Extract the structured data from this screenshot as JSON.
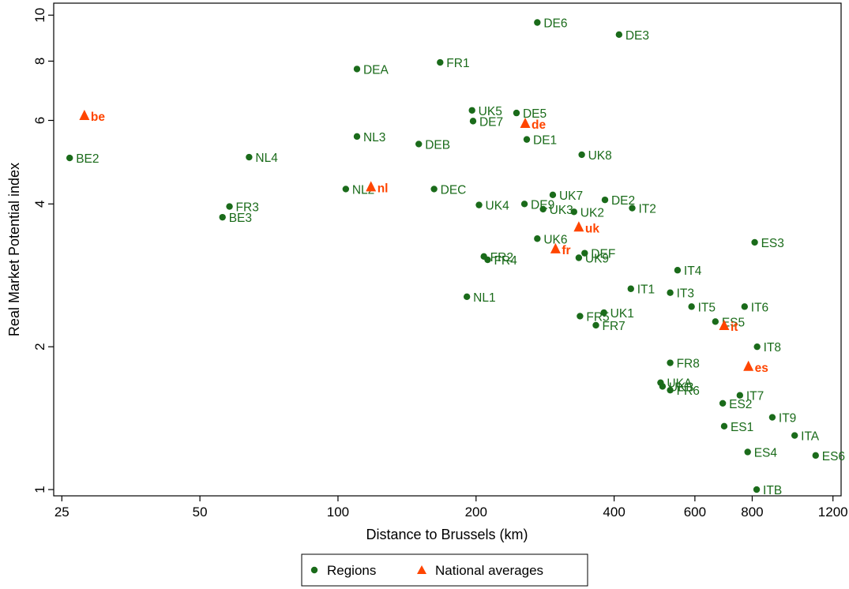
{
  "chart_data": {
    "type": "scatter",
    "xlabel": "Distance to Brussels (km)",
    "ylabel": "Real Market Potential index",
    "xscale": "log",
    "yscale": "log",
    "xlim": [
      24,
      1250
    ],
    "ylim": [
      0.97,
      10.6
    ],
    "xticks": [
      25,
      50,
      100,
      200,
      400,
      600,
      800,
      1200
    ],
    "yticks": [
      1,
      2,
      4,
      6,
      8,
      10
    ],
    "grid": false,
    "legend": {
      "placement": "bottom",
      "entries": [
        "Regions",
        "National averages"
      ]
    },
    "colors": {
      "regions": "#1a6b1a",
      "national": "#ff4500"
    },
    "series": [
      {
        "name": "Regions",
        "marker": "circle",
        "points": [
          {
            "label": "BE2",
            "x": 26,
            "y": 5.0
          },
          {
            "label": "BE3",
            "x": 56,
            "y": 3.75
          },
          {
            "label": "FR3",
            "x": 58,
            "y": 3.95
          },
          {
            "label": "NL4",
            "x": 64,
            "y": 5.02
          },
          {
            "label": "NL2",
            "x": 104,
            "y": 4.3
          },
          {
            "label": "NL3",
            "x": 110,
            "y": 5.55
          },
          {
            "label": "DEA",
            "x": 110,
            "y": 7.7
          },
          {
            "label": "DEB",
            "x": 150,
            "y": 5.35
          },
          {
            "label": "DEC",
            "x": 162,
            "y": 4.3
          },
          {
            "label": "FR1",
            "x": 167,
            "y": 7.95
          },
          {
            "label": "NL1",
            "x": 191,
            "y": 2.55
          },
          {
            "label": "UK5",
            "x": 196,
            "y": 6.3
          },
          {
            "label": "DE7",
            "x": 197,
            "y": 5.98
          },
          {
            "label": "UK4",
            "x": 203,
            "y": 3.98
          },
          {
            "label": "FR2",
            "x": 208,
            "y": 3.1
          },
          {
            "label": "FR4",
            "x": 212,
            "y": 3.05
          },
          {
            "label": "DE5",
            "x": 245,
            "y": 6.22
          },
          {
            "label": "DE9",
            "x": 255,
            "y": 4.0
          },
          {
            "label": "DE1",
            "x": 258,
            "y": 5.47
          },
          {
            "label": "DE6",
            "x": 272,
            "y": 9.65
          },
          {
            "label": "UK3",
            "x": 280,
            "y": 3.9
          },
          {
            "label": "UK6",
            "x": 272,
            "y": 3.38
          },
          {
            "label": "UK7",
            "x": 294,
            "y": 4.18
          },
          {
            "label": "UK2",
            "x": 327,
            "y": 3.85
          },
          {
            "label": "DEF",
            "x": 345,
            "y": 3.15
          },
          {
            "label": "UK9",
            "x": 335,
            "y": 3.08
          },
          {
            "label": "UK8",
            "x": 340,
            "y": 5.08
          },
          {
            "label": "FR5",
            "x": 337,
            "y": 2.32
          },
          {
            "label": "FR7",
            "x": 365,
            "y": 2.22
          },
          {
            "label": "UK1",
            "x": 380,
            "y": 2.36
          },
          {
            "label": "DE2",
            "x": 382,
            "y": 4.08
          },
          {
            "label": "DE3",
            "x": 410,
            "y": 9.1
          },
          {
            "label": "IT2",
            "x": 438,
            "y": 3.92
          },
          {
            "label": "IT1",
            "x": 435,
            "y": 2.65
          },
          {
            "label": "UKA",
            "x": 505,
            "y": 1.68
          },
          {
            "label": "UKB",
            "x": 510,
            "y": 1.65
          },
          {
            "label": "FR6",
            "x": 530,
            "y": 1.62
          },
          {
            "label": "FR8",
            "x": 530,
            "y": 1.85
          },
          {
            "label": "IT3",
            "x": 530,
            "y": 2.6
          },
          {
            "label": "IT4",
            "x": 550,
            "y": 2.9
          },
          {
            "label": "IT5",
            "x": 590,
            "y": 2.43
          },
          {
            "label": "ES5",
            "x": 665,
            "y": 2.26
          },
          {
            "label": "ES2",
            "x": 690,
            "y": 1.52
          },
          {
            "label": "ES1",
            "x": 695,
            "y": 1.36
          },
          {
            "label": "ES3",
            "x": 810,
            "y": 3.32
          },
          {
            "label": "IT6",
            "x": 770,
            "y": 2.43
          },
          {
            "label": "IT7",
            "x": 752,
            "y": 1.58
          },
          {
            "label": "ES4",
            "x": 782,
            "y": 1.2
          },
          {
            "label": "IT8",
            "x": 820,
            "y": 2.0
          },
          {
            "label": "ITB",
            "x": 818,
            "y": 1.0
          },
          {
            "label": "IT9",
            "x": 885,
            "y": 1.42
          },
          {
            "label": "ITA",
            "x": 990,
            "y": 1.3
          },
          {
            "label": "ES6",
            "x": 1100,
            "y": 1.18
          }
        ]
      },
      {
        "name": "National averages",
        "marker": "triangle",
        "points": [
          {
            "label": "be",
            "x": 28,
            "y": 6.15
          },
          {
            "label": "nl",
            "x": 118,
            "y": 4.35
          },
          {
            "label": "de",
            "x": 256,
            "y": 5.92
          },
          {
            "label": "uk",
            "x": 335,
            "y": 3.58
          },
          {
            "label": "fr",
            "x": 298,
            "y": 3.22
          },
          {
            "label": "it",
            "x": 695,
            "y": 2.22
          },
          {
            "label": "es",
            "x": 785,
            "y": 1.82
          }
        ]
      }
    ]
  }
}
